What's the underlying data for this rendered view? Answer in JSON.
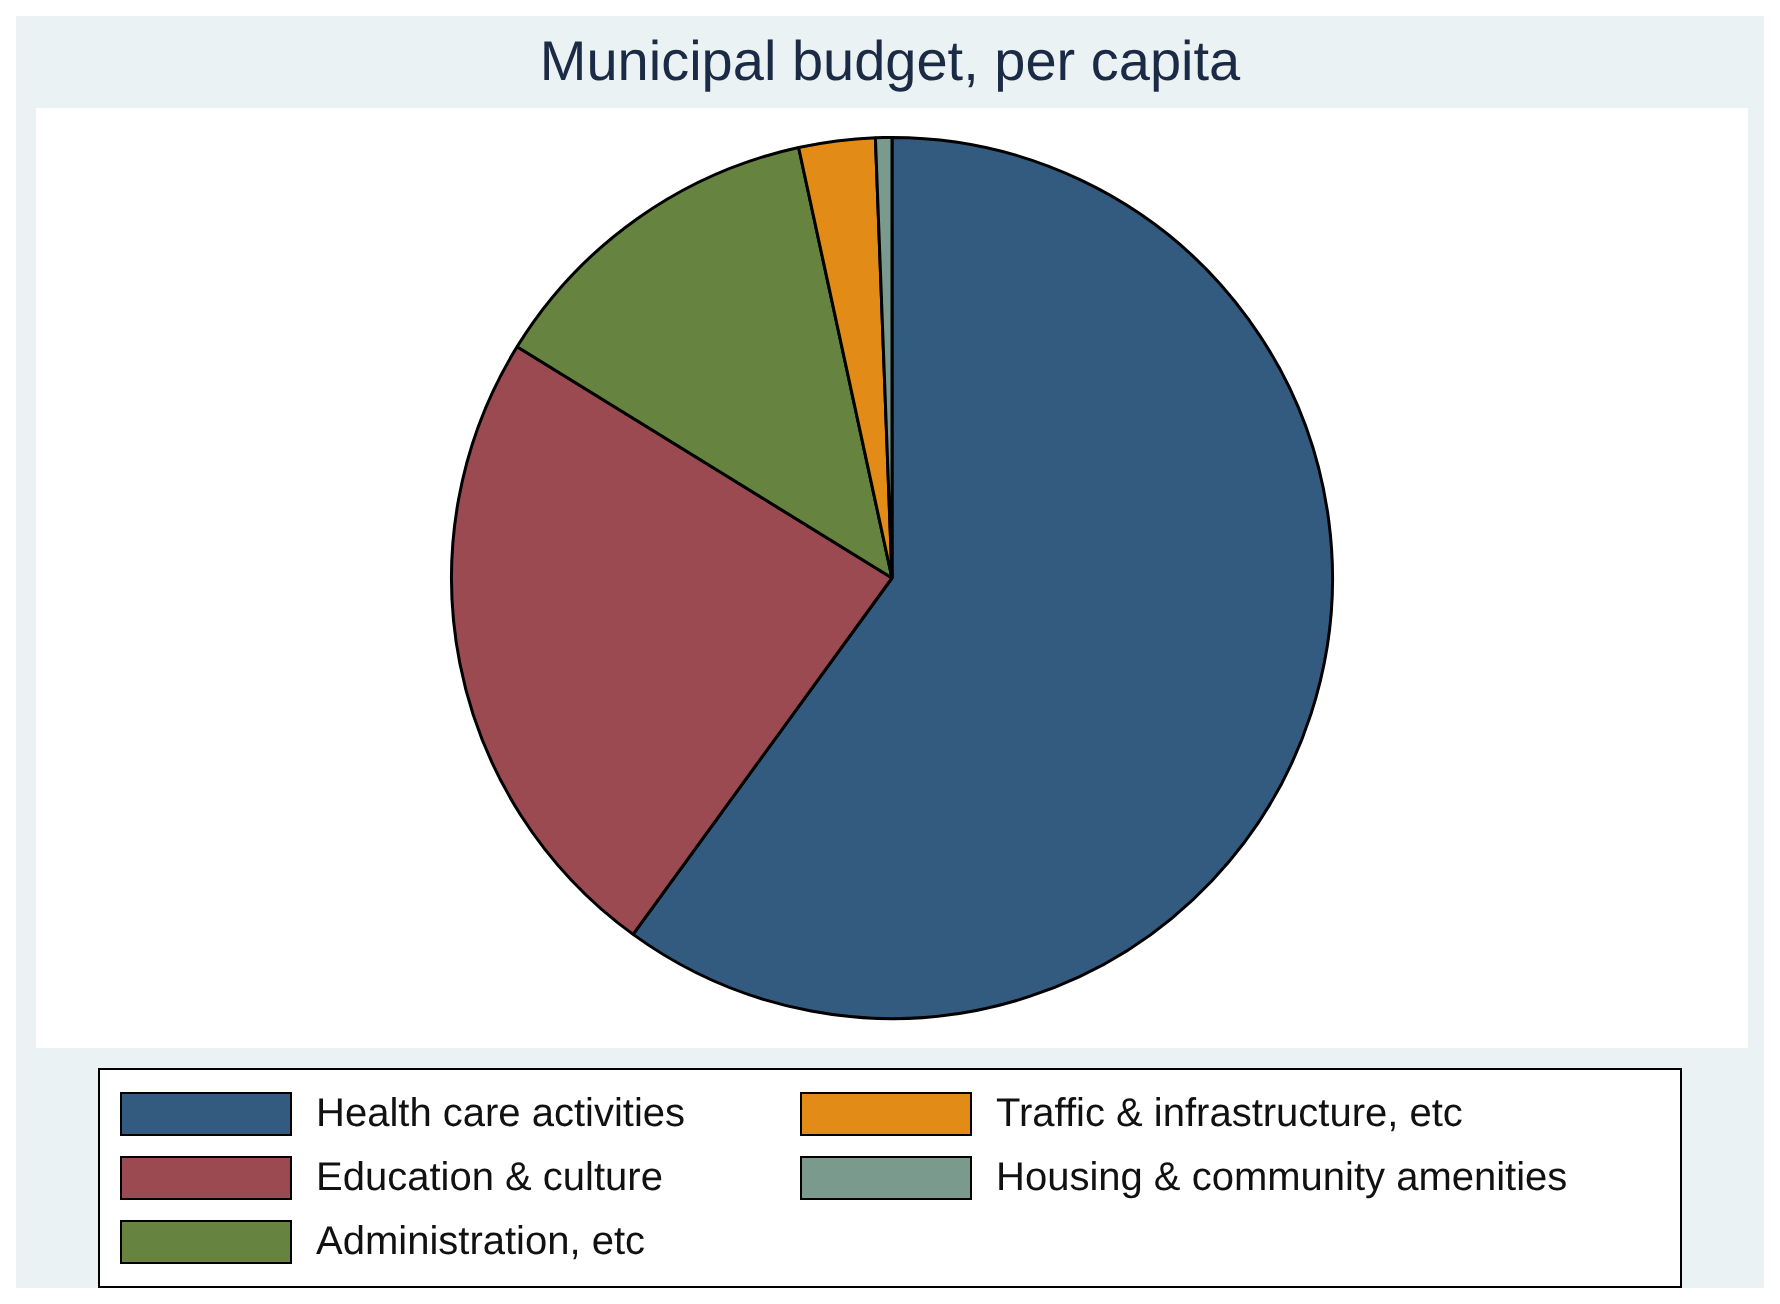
{
  "chart_data": {
    "type": "pie",
    "title": "Municipal budget, per capita",
    "categories": [
      "Health care activities",
      "Education & culture",
      "Administration, etc",
      "Traffic & infrastructure, etc",
      "Housing & community amenities"
    ],
    "values": [
      60,
      23.8,
      12.8,
      2.8,
      0.6
    ],
    "colors": [
      "#335a7f",
      "#9a4a50",
      "#66843f",
      "#e38b17",
      "#7b9a8e"
    ],
    "legend": "bottom"
  }
}
